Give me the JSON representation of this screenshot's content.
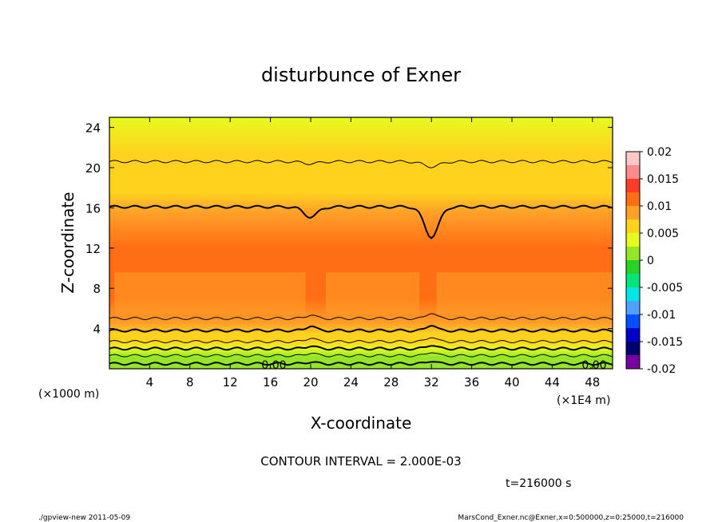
{
  "chart_data": {
    "type": "heatmap",
    "title": "disturbunce of Exner",
    "xlabel": "X-coordinate",
    "ylabel": "Z-coordinate",
    "x_unit_left": "(×1000 m)",
    "x_unit_right": "(×1E4 m)",
    "x_ticks": [
      4,
      8,
      12,
      16,
      20,
      24,
      28,
      32,
      36,
      40,
      44,
      48
    ],
    "y_ticks": [
      4,
      8,
      12,
      16,
      20,
      24
    ],
    "xlim": [
      0,
      50
    ],
    "ylim": [
      0,
      25
    ],
    "colorbar": {
      "ticks": [
        "0.02",
        "0.015",
        "0.01",
        "0.005",
        "0",
        "-0.005",
        "-0.01",
        "-0.015",
        "-0.02"
      ],
      "range": [
        -0.02,
        0.02
      ],
      "colors": [
        "#ffc8c8",
        "#ff8c8c",
        "#ff3c28",
        "#ff6e14",
        "#ffa028",
        "#ffd21e",
        "#e6fa1e",
        "#96e628",
        "#28d228",
        "#00e678",
        "#00e6e6",
        "#50a0ff",
        "#0050ff",
        "#0000c8",
        "#00006e",
        "#7800a0"
      ]
    },
    "contour_labels": [
      "0.00",
      "0.00"
    ],
    "contour_interval": "CONTOUR INTERVAL = 2.000E-03",
    "time_label": "t=216000 s",
    "footer_left": "./gpview-new   2011-05-09",
    "footer_right": "MarsCond_Exner.nc@Exner,x=0:500000,z=0:25000,t=216000",
    "bands": [
      {
        "z": 24.9,
        "value": 0.003
      },
      {
        "z": 21.5,
        "value": 0.005
      },
      {
        "z": 17.5,
        "value": 0.007
      },
      {
        "z": 15.5,
        "value": 0.009
      },
      {
        "z": 12.0,
        "value": 0.0105
      },
      {
        "z": 9.5,
        "value": 0.012
      },
      {
        "z": 7.0,
        "value": 0.011
      },
      {
        "z": 4.5,
        "value": 0.009
      },
      {
        "z": 3.5,
        "value": 0.007
      },
      {
        "z": 2.7,
        "value": 0.005
      },
      {
        "z": 2.0,
        "value": 0.003
      },
      {
        "z": 1.2,
        "value": 0.0015
      },
      {
        "z": 0.0,
        "value": 0.0
      }
    ]
  }
}
